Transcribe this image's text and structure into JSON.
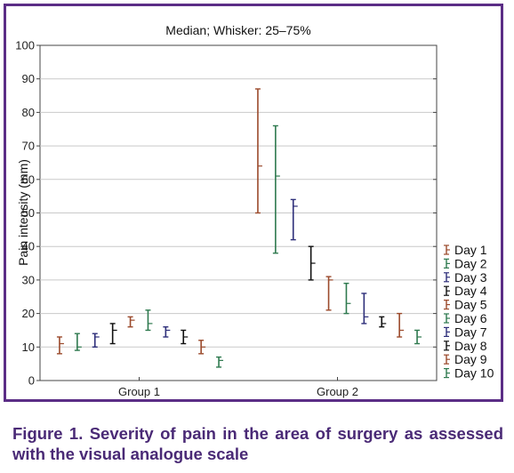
{
  "chart_data": {
    "type": "box",
    "title": "Median; Whisker: 25–75%",
    "xlabel": "",
    "ylabel": "Pain intensity (mm)",
    "ylim": [
      0,
      100
    ],
    "yticks": [
      0,
      10,
      20,
      30,
      40,
      50,
      60,
      70,
      80,
      90,
      100
    ],
    "categories": [
      "Group 1",
      "Group 2"
    ],
    "grid": true,
    "legend_position": "bottom-right",
    "series": [
      {
        "name": "Day 1",
        "color": "#9b4a2c",
        "data": [
          {
            "group": "Group 1",
            "median": 11,
            "q1": 8,
            "q3": 13
          },
          {
            "group": "Group 2",
            "median": 64,
            "q1": 50,
            "q3": 87
          }
        ]
      },
      {
        "name": "Day 2",
        "color": "#2f7a4f",
        "data": [
          {
            "group": "Group 1",
            "median": 10,
            "q1": 9,
            "q3": 14
          },
          {
            "group": "Group 2",
            "median": 61,
            "q1": 38,
            "q3": 76
          }
        ]
      },
      {
        "name": "Day 3",
        "color": "#2e2f7a",
        "data": [
          {
            "group": "Group 1",
            "median": 13,
            "q1": 10,
            "q3": 14
          },
          {
            "group": "Group 2",
            "median": 52,
            "q1": 42,
            "q3": 54
          }
        ]
      },
      {
        "name": "Day 4",
        "color": "#111111",
        "data": [
          {
            "group": "Group 1",
            "median": 15,
            "q1": 11,
            "q3": 17
          },
          {
            "group": "Group 2",
            "median": 35,
            "q1": 30,
            "q3": 40
          }
        ]
      },
      {
        "name": "Day 5",
        "color": "#9b4a2c",
        "data": [
          {
            "group": "Group 1",
            "median": 18,
            "q1": 16,
            "q3": 19
          },
          {
            "group": "Group 2",
            "median": 30,
            "q1": 21,
            "q3": 31
          }
        ]
      },
      {
        "name": "Day 6",
        "color": "#2f7a4f",
        "data": [
          {
            "group": "Group 1",
            "median": 17,
            "q1": 15,
            "q3": 21
          },
          {
            "group": "Group 2",
            "median": 23,
            "q1": 20,
            "q3": 29
          }
        ]
      },
      {
        "name": "Day 7",
        "color": "#2e2f7a",
        "data": [
          {
            "group": "Group 1",
            "median": 15,
            "q1": 13,
            "q3": 16
          },
          {
            "group": "Group 2",
            "median": 19,
            "q1": 17,
            "q3": 26
          }
        ]
      },
      {
        "name": "Day 8",
        "color": "#111111",
        "data": [
          {
            "group": "Group 1",
            "median": 13,
            "q1": 11,
            "q3": 15
          },
          {
            "group": "Group 2",
            "median": 17,
            "q1": 16,
            "q3": 19
          }
        ]
      },
      {
        "name": "Day 9",
        "color": "#9b4a2c",
        "data": [
          {
            "group": "Group 1",
            "median": 10,
            "q1": 8,
            "q3": 12
          },
          {
            "group": "Group 2",
            "median": 15,
            "q1": 13,
            "q3": 20
          }
        ]
      },
      {
        "name": "Day 10",
        "color": "#2f7a4f",
        "data": [
          {
            "group": "Group 1",
            "median": 6,
            "q1": 4,
            "q3": 7
          },
          {
            "group": "Group 2",
            "median": 13,
            "q1": 11,
            "q3": 15
          }
        ]
      }
    ]
  },
  "caption": "Figure 1. Severity of pain in the area of surgery as assessed with the visual analogue scale"
}
